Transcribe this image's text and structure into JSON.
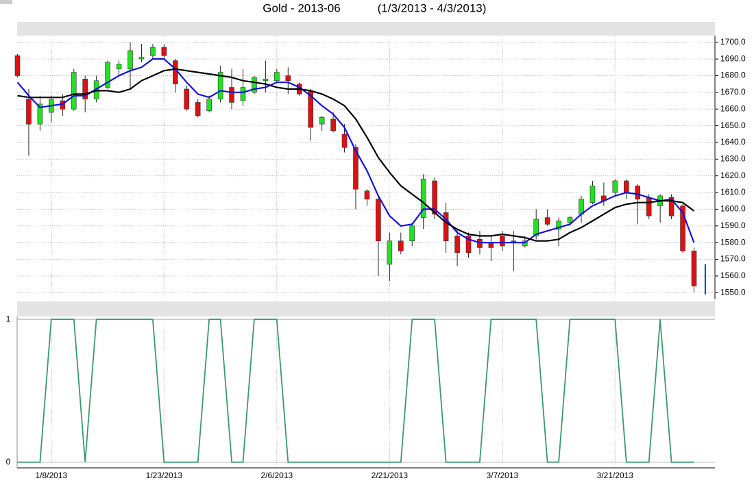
{
  "chart_data": [
    {
      "type": "candlestick",
      "title": "Gold - 2013-06",
      "subtitle": "(1/3/2013 - 4/3/2013)",
      "categories": [
        null,
        null,
        null,
        "1/8/2013",
        null,
        null,
        null,
        null,
        null,
        null,
        null,
        null,
        null,
        "1/23/2013",
        null,
        null,
        null,
        null,
        null,
        null,
        null,
        null,
        null,
        "2/6/2013",
        null,
        null,
        null,
        null,
        null,
        null,
        null,
        null,
        null,
        "2/21/2013",
        null,
        null,
        null,
        null,
        null,
        null,
        null,
        null,
        null,
        "3/7/2013",
        null,
        null,
        null,
        null,
        null,
        null,
        null,
        null,
        null,
        "3/21/2013",
        null,
        null,
        null,
        null,
        null,
        null,
        null,
        null
      ],
      "open": [
        1692,
        1666,
        1651,
        1658,
        1665,
        1660,
        1678,
        1666,
        1673,
        1684,
        1684,
        1690,
        1692,
        1697,
        1689,
        1672,
        1664,
        1659,
        1666,
        1673,
        1665,
        1670,
        1677,
        1677,
        1680,
        1675,
        1671,
        1651,
        1654,
        1645,
        1637,
        1611,
        1606,
        1567,
        1581,
        1581,
        1595,
        1617,
        1598,
        1584,
        1584,
        1582,
        1580,
        1584,
        1581,
        1578,
        1584,
        1595,
        1588,
        1592,
        1597,
        1604,
        1608,
        1610,
        1617,
        1614,
        1607,
        1602,
        1607,
        1602,
        1575,
        1567
      ],
      "high": [
        1693,
        1672,
        1668,
        1668,
        1669,
        1684,
        1680,
        1680,
        1689,
        1689,
        1700,
        1699,
        1699,
        1699,
        1690,
        1674,
        1666,
        1668,
        1686,
        1684,
        1684,
        1680,
        1689,
        1684,
        1685,
        1676,
        1672,
        1656,
        1658,
        1651,
        1639,
        1612,
        1608,
        1586,
        1586,
        1592,
        1621,
        1619,
        1604,
        1588,
        1586,
        1587,
        1584,
        1587,
        1587,
        1584,
        1600,
        1600,
        1595,
        1596,
        1608,
        1617,
        1616,
        1618,
        1618,
        1615,
        1609,
        1609,
        1609,
        1603,
        1577,
        1567
      ],
      "low": [
        1679,
        1632,
        1647,
        1652,
        1656,
        1659,
        1658,
        1664,
        1672,
        1680,
        1672,
        1688,
        1690,
        1690,
        1670,
        1659,
        1655,
        1658,
        1664,
        1660,
        1662,
        1669,
        1670,
        1676,
        1669,
        1668,
        1641,
        1647,
        1646,
        1634,
        1600,
        1602,
        1560,
        1557,
        1573,
        1578,
        1588,
        1594,
        1574,
        1566,
        1571,
        1573,
        1569,
        1575,
        1563,
        1577,
        1582,
        1590,
        1578,
        1590,
        1592,
        1603,
        1602,
        1608,
        1606,
        1591,
        1594,
        1592,
        1594,
        1574,
        1550,
        1549
      ],
      "close": [
        1680,
        1651,
        1663,
        1666,
        1660,
        1682,
        1666,
        1677,
        1688,
        1687,
        1695,
        1691,
        1697,
        1692,
        1675,
        1660,
        1656,
        1666,
        1682,
        1664,
        1673,
        1679,
        1678,
        1682,
        1677,
        1669,
        1649,
        1655,
        1647,
        1637,
        1612,
        1606,
        1581,
        1581,
        1575,
        1590,
        1618,
        1597,
        1581,
        1574,
        1574,
        1577,
        1577,
        1578,
        1580,
        1581,
        1594,
        1591,
        1593,
        1595,
        1606,
        1614,
        1605,
        1617,
        1610,
        1606,
        1596,
        1608,
        1596,
        1575,
        1554,
        1549
      ],
      "up_color": "#22e022",
      "down_color": "#dd1111",
      "last_color": "#1f4fa0",
      "series": [
        {
          "color": "#1111dd",
          "values": [
            1676,
            1668,
            1661,
            1662,
            1663,
            1668,
            1668,
            1672,
            1676,
            1680,
            1683,
            1685,
            1690,
            1690,
            1684,
            1676,
            1669,
            1667,
            1671,
            1670,
            1670,
            1672,
            1673,
            1676,
            1676,
            1673,
            1668,
            1662,
            1657,
            1649,
            1635,
            1623,
            1608,
            1596,
            1590,
            1591,
            1600,
            1600,
            1594,
            1586,
            1582,
            1580,
            1580,
            1580,
            1580,
            1580,
            1585,
            1587,
            1589,
            1591,
            1597,
            1602,
            1605,
            1608,
            1610,
            1609,
            1607,
            1605,
            1606,
            1598,
            1580,
            null
          ]
        },
        {
          "color": "#000000",
          "values": [
            1668,
            1667,
            1667,
            1667,
            1667,
            1669,
            1669,
            1671,
            1671,
            1670,
            1672,
            1677,
            1680,
            1683,
            1684,
            1683,
            1682,
            1681,
            1680,
            1679,
            1677,
            1676,
            1675,
            1673,
            1672,
            1672,
            1671,
            1669,
            1666,
            1662,
            1654,
            1643,
            1631,
            1622,
            1614,
            1609,
            1604,
            1598,
            1592,
            1588,
            1585,
            1584,
            1584,
            1585,
            1584,
            1583,
            1581,
            1581,
            1582,
            1586,
            1589,
            1593,
            1597,
            1601,
            1603,
            1604,
            1604,
            1605,
            1605,
            1604,
            1599,
            null
          ]
        }
      ],
      "ylim": [
        1546,
        1704
      ],
      "yticks": [
        {
          "value": 1550,
          "label": "1550.0"
        },
        {
          "value": 1560,
          "label": "1560.0"
        },
        {
          "value": 1570,
          "label": "1570.0"
        },
        {
          "value": 1580,
          "label": "1580.0"
        },
        {
          "value": 1590,
          "label": "1590.0"
        },
        {
          "value": 1600,
          "label": "1600.0"
        },
        {
          "value": 1610,
          "label": "1610.0"
        },
        {
          "value": 1620,
          "label": "1620.0"
        },
        {
          "value": 1630,
          "label": "1630.0"
        },
        {
          "value": 1640,
          "label": "1640.0"
        },
        {
          "value": 1650,
          "label": "1650.0"
        },
        {
          "value": 1660,
          "label": "1660.0"
        },
        {
          "value": 1670,
          "label": "1670.0"
        },
        {
          "value": 1680,
          "label": "1680.0"
        },
        {
          "value": 1690,
          "label": "1690.0"
        },
        {
          "value": 1700,
          "label": "1700.0"
        }
      ],
      "grid": true
    },
    {
      "type": "line",
      "series": [
        {
          "color": "#3a9a6a",
          "values": [
            0,
            0,
            0,
            1,
            1,
            1,
            0,
            1,
            1,
            1,
            1,
            1,
            1,
            0,
            0,
            0,
            0,
            1,
            1,
            0,
            0,
            1,
            1,
            1,
            0,
            0,
            0,
            0,
            0,
            0,
            0,
            0,
            0,
            0,
            0,
            1,
            1,
            1,
            0,
            0,
            0,
            0,
            1,
            1,
            1,
            1,
            1,
            0,
            0,
            1,
            1,
            1,
            1,
            1,
            0,
            0,
            0,
            1,
            0,
            0,
            0,
            null
          ]
        }
      ],
      "ylim": [
        -0.04,
        1.02
      ],
      "yticks": [
        0,
        1
      ],
      "grid": true
    }
  ]
}
